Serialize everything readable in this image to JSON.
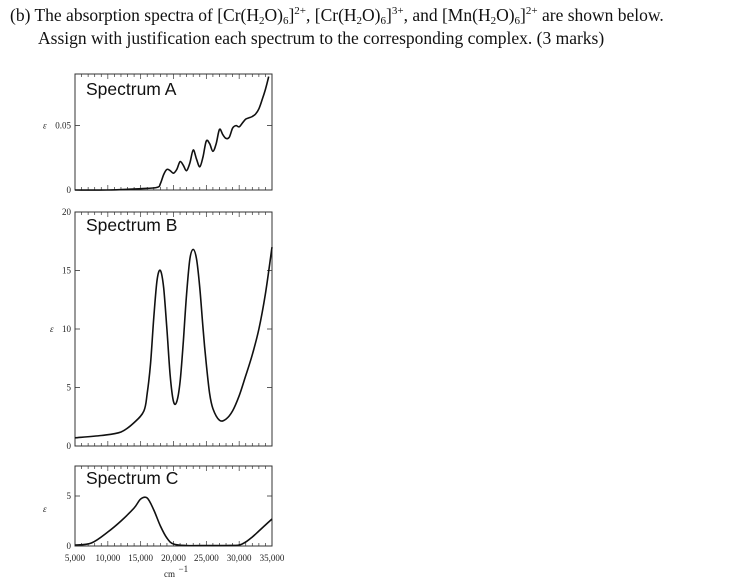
{
  "question": {
    "label": "(b)",
    "intro": "The absorption spectra of",
    "complex1": {
      "metal": "Cr",
      "ligand_h": "H",
      "ligand_sub": "2",
      "ligand_o": "O)",
      "count": "6",
      "charge": "2+"
    },
    "complex2": {
      "metal": "Cr",
      "ligand_h": "H",
      "ligand_sub": "2",
      "ligand_o": "O)",
      "count": "6",
      "charge": "3+"
    },
    "complex3": {
      "metal": "Mn",
      "ligand_h": "H",
      "ligand_sub": "2",
      "ligand_o": "O)",
      "count": "6",
      "charge": "2+"
    },
    "sep1": ",",
    "sep2": ", and",
    "tail": "are shown below.",
    "line2": "Assign with justification each spectrum to the corresponding complex. (3 marks)"
  },
  "chart_data": [
    {
      "type": "line",
      "title": "Spectrum A",
      "ylabel": "ε",
      "yticks": [
        "0.05",
        "0"
      ],
      "ylim": [
        0,
        0.09
      ],
      "xlim": [
        5000,
        35000
      ],
      "series": [
        {
          "x": [
            5000,
            10000,
            15000,
            17500,
            18000,
            18500,
            19000,
            19500,
            20000,
            20500,
            21000,
            21500,
            22000,
            22500,
            23000,
            23500,
            24000,
            24500,
            25000,
            25500,
            26000,
            26500,
            27000,
            27500,
            28000,
            28500,
            29000,
            29500,
            30000,
            30500,
            31000,
            31500,
            32000,
            32500,
            33000,
            33500,
            34000,
            34500
          ],
          "y": [
            0,
            0,
            0.001,
            0.002,
            0.005,
            0.012,
            0.016,
            0.015,
            0.013,
            0.016,
            0.022,
            0.019,
            0.015,
            0.021,
            0.031,
            0.024,
            0.018,
            0.026,
            0.038,
            0.036,
            0.03,
            0.036,
            0.047,
            0.043,
            0.04,
            0.041,
            0.048,
            0.05,
            0.049,
            0.052,
            0.055,
            0.056,
            0.057,
            0.059,
            0.063,
            0.07,
            0.078,
            0.088
          ]
        }
      ]
    },
    {
      "type": "line",
      "title": "Spectrum B",
      "ylabel": "ε",
      "yticks": [
        "20",
        "15",
        "10",
        "5",
        "0"
      ],
      "ylim": [
        0,
        20
      ],
      "xlim": [
        5000,
        35000
      ],
      "series": [
        {
          "x": [
            5000,
            9000,
            12000,
            14000,
            15500,
            16000,
            16500,
            17000,
            17500,
            18000,
            18500,
            19000,
            19500,
            20000,
            20500,
            21000,
            21500,
            22000,
            22500,
            23000,
            23500,
            24000,
            24500,
            25000,
            25500,
            26000,
            27000,
            28000,
            29000,
            30000,
            31000,
            32000,
            33000,
            34000,
            35000
          ],
          "y": [
            0.7,
            0.9,
            1.2,
            2.0,
            3.0,
            4.5,
            7.0,
            11.0,
            14.2,
            15.0,
            13.5,
            10.0,
            6.0,
            3.8,
            3.8,
            5.5,
            9.0,
            13.0,
            16.0,
            16.8,
            16.0,
            13.5,
            10.0,
            7.0,
            4.5,
            3.2,
            2.2,
            2.3,
            3.0,
            4.3,
            6.0,
            7.8,
            10.0,
            13.0,
            17.0
          ]
        }
      ]
    },
    {
      "type": "line",
      "title": "Spectrum C",
      "ylabel": "ε",
      "yticks": [
        "5",
        "0"
      ],
      "ylim": [
        0,
        8
      ],
      "xlim": [
        5000,
        35000
      ],
      "xticks": [
        "5,000",
        "10,000",
        "15,000",
        "20,000",
        "25,000",
        "30,000",
        "35,000"
      ],
      "xlabel": "cm",
      "xlabel_sup": "−1",
      "series": [
        {
          "x": [
            5000,
            7500,
            10000,
            12000,
            14000,
            15000,
            16000,
            17000,
            18000,
            19000,
            20000,
            22000,
            25000,
            28000,
            30000,
            31000,
            32000,
            33000,
            34000,
            35000
          ],
          "y": [
            0.1,
            0.3,
            1.4,
            2.5,
            3.8,
            4.7,
            4.8,
            3.6,
            2.0,
            0.8,
            0.2,
            0.05,
            0.05,
            0.05,
            0.1,
            0.4,
            0.9,
            1.5,
            2.1,
            2.7
          ]
        }
      ]
    }
  ]
}
